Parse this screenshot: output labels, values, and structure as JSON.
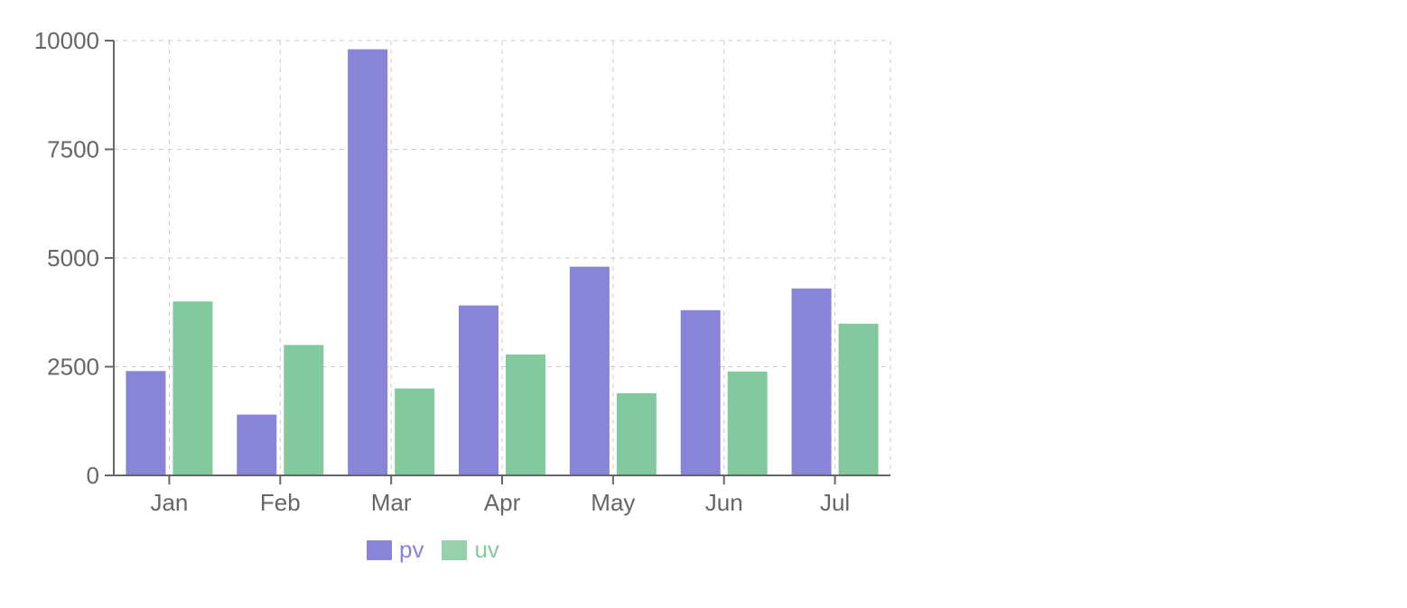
{
  "chart_data": {
    "type": "bar",
    "title": "",
    "xlabel": "",
    "ylabel": "",
    "categories": [
      "Jan",
      "Feb",
      "Mar",
      "Apr",
      "May",
      "Jun",
      "Jul"
    ],
    "series": [
      {
        "name": "pv",
        "color": "#8884d8",
        "values": [
          2400,
          1398,
          9800,
          3908,
          4800,
          3800,
          4300
        ]
      },
      {
        "name": "uv",
        "color": "#82ca9d",
        "values": [
          4000,
          3000,
          2000,
          2780,
          1890,
          2390,
          3490
        ]
      }
    ],
    "ylim": [
      0,
      10000
    ],
    "yticks": [
      0,
      2500,
      5000,
      7500,
      10000
    ],
    "grid": true,
    "legend_position": "bottom"
  },
  "legend": {
    "items": [
      {
        "label": "pv",
        "color": "#8884d8"
      },
      {
        "label": "uv",
        "color": "#82ca9d"
      }
    ]
  }
}
